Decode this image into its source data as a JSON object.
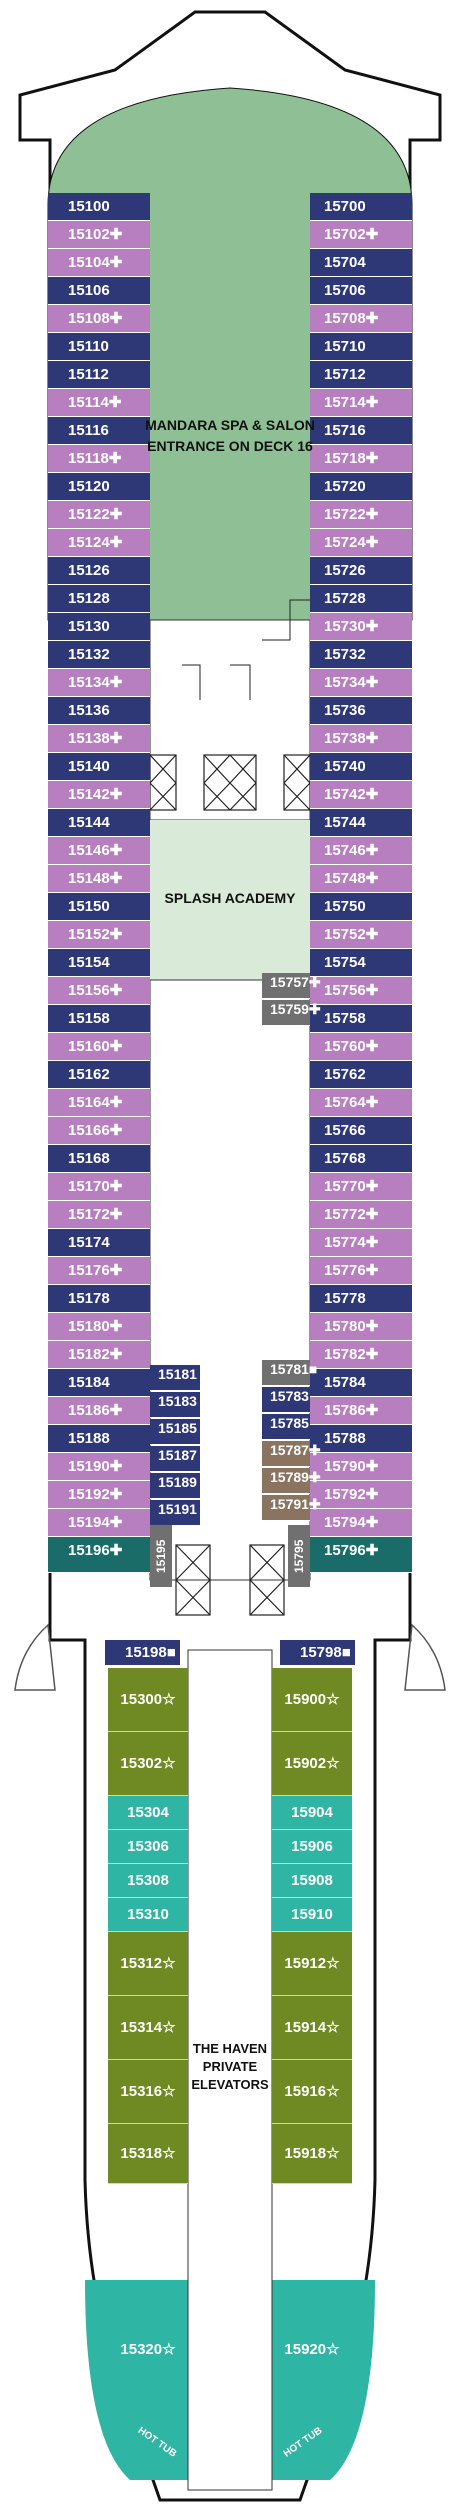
{
  "legend_marks": {
    "connecting": "↕",
    "accessible": "✚",
    "star": "☆",
    "square": "■"
  },
  "venues": {
    "spa_line1": "MANDARA SPA & SALON",
    "spa_line2": "ENTRANCE ON DECK 16",
    "kids": "SPLASH ACADEMY",
    "haven_line1": "THE HAVEN",
    "haven_line2": "PRIVATE",
    "haven_line3": "ELEVATORS",
    "hot_tub_left": "HOT TUB",
    "hot_tub_right": "HOT TUB"
  },
  "colors": {
    "navy": "#2f3877",
    "violet": "#b77fc0",
    "spa_green": "#8fbf95",
    "kids_green": "#d9ead9",
    "teal_dark": "#196c67",
    "haven_olive": "#6f8a22",
    "haven_aqua": "#2fb5a4",
    "grey": "#707070"
  },
  "left_cabins": [
    {
      "label": "15100",
      "style": "navy"
    },
    {
      "label": "15102✚",
      "style": "violet"
    },
    {
      "label": "15104✚",
      "style": "violet"
    },
    {
      "label": "15106",
      "style": "navy"
    },
    {
      "label": "15108✚",
      "style": "violet"
    },
    {
      "label": "15110",
      "style": "navy"
    },
    {
      "label": "15112",
      "style": "navy"
    },
    {
      "label": "15114✚",
      "style": "violet"
    },
    {
      "label": "15116",
      "style": "navy"
    },
    {
      "label": "15118✚",
      "style": "violet"
    },
    {
      "label": "15120",
      "style": "navy"
    },
    {
      "label": "15122✚",
      "style": "violet"
    },
    {
      "label": "15124✚",
      "style": "violet"
    },
    {
      "label": "15126",
      "style": "navy"
    },
    {
      "label": "15128",
      "style": "navy"
    },
    {
      "label": "15130",
      "style": "navy"
    },
    {
      "label": "15132",
      "style": "navy"
    },
    {
      "label": "15134✚",
      "style": "violet"
    },
    {
      "label": "15136",
      "style": "navy"
    },
    {
      "label": "15138✚",
      "style": "violet"
    },
    {
      "label": "15140",
      "style": "navy"
    },
    {
      "label": "15142✚",
      "style": "violet"
    },
    {
      "label": "15144",
      "style": "navy"
    },
    {
      "label": "15146✚",
      "style": "violet"
    },
    {
      "label": "15148✚",
      "style": "violet"
    },
    {
      "label": "15150",
      "style": "navy"
    },
    {
      "label": "15152✚",
      "style": "violet"
    },
    {
      "label": "15154",
      "style": "navy"
    },
    {
      "label": "15156✚",
      "style": "violet"
    },
    {
      "label": "15158",
      "style": "navy"
    },
    {
      "label": "15160✚",
      "style": "violet"
    },
    {
      "label": "15162",
      "style": "navy"
    },
    {
      "label": "15164✚",
      "style": "violet"
    },
    {
      "label": "15166✚",
      "style": "violet"
    },
    {
      "label": "15168",
      "style": "navy"
    },
    {
      "label": "15170✚",
      "style": "violet"
    },
    {
      "label": "15172✚",
      "style": "violet"
    },
    {
      "label": "15174",
      "style": "navy"
    },
    {
      "label": "15176✚",
      "style": "violet"
    },
    {
      "label": "15178",
      "style": "navy"
    },
    {
      "label": "15180✚",
      "style": "violet"
    },
    {
      "label": "15182✚",
      "style": "violet"
    },
    {
      "label": "15184",
      "style": "navy"
    },
    {
      "label": "15186✚",
      "style": "violet"
    },
    {
      "label": "15188",
      "style": "navy"
    },
    {
      "label": "15190✚",
      "style": "violet"
    },
    {
      "label": "15192✚",
      "style": "violet"
    },
    {
      "label": "15194✚",
      "style": "violet"
    },
    {
      "label": "15196✚",
      "style": "teal"
    }
  ],
  "right_cabins": [
    {
      "label": "15700",
      "style": "navy"
    },
    {
      "label": "15702✚",
      "style": "violet"
    },
    {
      "label": "15704",
      "style": "navy"
    },
    {
      "label": "15706",
      "style": "navy"
    },
    {
      "label": "15708✚",
      "style": "violet"
    },
    {
      "label": "15710",
      "style": "navy"
    },
    {
      "label": "15712",
      "style": "navy"
    },
    {
      "label": "15714✚",
      "style": "violet"
    },
    {
      "label": "15716",
      "style": "navy"
    },
    {
      "label": "15718✚",
      "style": "violet"
    },
    {
      "label": "15720",
      "style": "navy"
    },
    {
      "label": "15722✚",
      "style": "violet"
    },
    {
      "label": "15724✚",
      "style": "violet"
    },
    {
      "label": "15726",
      "style": "navy"
    },
    {
      "label": "15728",
      "style": "navy"
    },
    {
      "label": "15730✚",
      "style": "violet"
    },
    {
      "label": "15732",
      "style": "navy"
    },
    {
      "label": "15734✚",
      "style": "violet"
    },
    {
      "label": "15736",
      "style": "navy"
    },
    {
      "label": "15738✚",
      "style": "violet"
    },
    {
      "label": "15740",
      "style": "navy"
    },
    {
      "label": "15742✚",
      "style": "violet"
    },
    {
      "label": "15744",
      "style": "navy"
    },
    {
      "label": "15746✚",
      "style": "violet"
    },
    {
      "label": "15748✚",
      "style": "violet"
    },
    {
      "label": "15750",
      "style": "navy"
    },
    {
      "label": "15752✚",
      "style": "violet"
    },
    {
      "label": "15754",
      "style": "navy"
    },
    {
      "label": "15756✚",
      "style": "violet"
    },
    {
      "label": "15758",
      "style": "navy"
    },
    {
      "label": "15760✚",
      "style": "violet"
    },
    {
      "label": "15762",
      "style": "navy"
    },
    {
      "label": "15764✚",
      "style": "violet"
    },
    {
      "label": "15766",
      "style": "navy"
    },
    {
      "label": "15768",
      "style": "navy"
    },
    {
      "label": "15770✚",
      "style": "violet"
    },
    {
      "label": "15772✚",
      "style": "violet"
    },
    {
      "label": "15774✚",
      "style": "violet"
    },
    {
      "label": "15776✚",
      "style": "violet"
    },
    {
      "label": "15778",
      "style": "navy"
    },
    {
      "label": "15780✚",
      "style": "violet"
    },
    {
      "label": "15782✚",
      "style": "violet"
    },
    {
      "label": "15784",
      "style": "navy"
    },
    {
      "label": "15786✚",
      "style": "violet"
    },
    {
      "label": "15788",
      "style": "navy"
    },
    {
      "label": "15790✚",
      "style": "violet"
    },
    {
      "label": "15792✚",
      "style": "violet"
    },
    {
      "label": "15794✚",
      "style": "violet"
    },
    {
      "label": "15796✚",
      "style": "teal"
    }
  ],
  "inner_left": [
    {
      "label": "15181",
      "style": "navy"
    },
    {
      "label": "15183",
      "style": "navy"
    },
    {
      "label": "15185",
      "style": "navy"
    },
    {
      "label": "15187",
      "style": "navy"
    },
    {
      "label": "15189",
      "style": "navy"
    },
    {
      "label": "15191",
      "style": "navy"
    }
  ],
  "inner_right": [
    {
      "label": "15781■",
      "style": "grey"
    },
    {
      "label": "15783",
      "style": "navy"
    },
    {
      "label": "15785",
      "style": "navy"
    },
    {
      "label": "15787✚",
      "style": "tan"
    },
    {
      "label": "15789✚",
      "style": "tan"
    },
    {
      "label": "15791✚",
      "style": "tan"
    }
  ],
  "inner_upper": [
    {
      "label": "15757✚",
      "style": "grey"
    },
    {
      "label": "15759✚",
      "style": "grey"
    }
  ],
  "vertical_cabins": {
    "left": "15195",
    "right": "15795"
  },
  "haven_left": [
    {
      "label": "15198■",
      "style": "navy"
    },
    {
      "label": "15300☆",
      "style": "olive"
    },
    {
      "label": "15302☆",
      "style": "olive"
    },
    {
      "label": "15304",
      "style": "aqua"
    },
    {
      "label": "15306",
      "style": "aqua"
    },
    {
      "label": "15308",
      "style": "aqua"
    },
    {
      "label": "15310",
      "style": "aqua"
    },
    {
      "label": "15312☆",
      "style": "olive"
    },
    {
      "label": "15314☆",
      "style": "olive"
    },
    {
      "label": "15316☆",
      "style": "olive"
    },
    {
      "label": "15318☆",
      "style": "olive"
    },
    {
      "label": "15320☆",
      "style": "aqua"
    }
  ],
  "haven_right": [
    {
      "label": "15798■",
      "style": "navy"
    },
    {
      "label": "15900☆",
      "style": "olive"
    },
    {
      "label": "15902☆",
      "style": "olive"
    },
    {
      "label": "15904",
      "style": "aqua"
    },
    {
      "label": "15906",
      "style": "aqua"
    },
    {
      "label": "15908",
      "style": "aqua"
    },
    {
      "label": "15910",
      "style": "aqua"
    },
    {
      "label": "15912☆",
      "style": "olive"
    },
    {
      "label": "15914☆",
      "style": "olive"
    },
    {
      "label": "15916☆",
      "style": "olive"
    },
    {
      "label": "15918☆",
      "style": "olive"
    },
    {
      "label": "15920☆",
      "style": "aqua"
    }
  ]
}
